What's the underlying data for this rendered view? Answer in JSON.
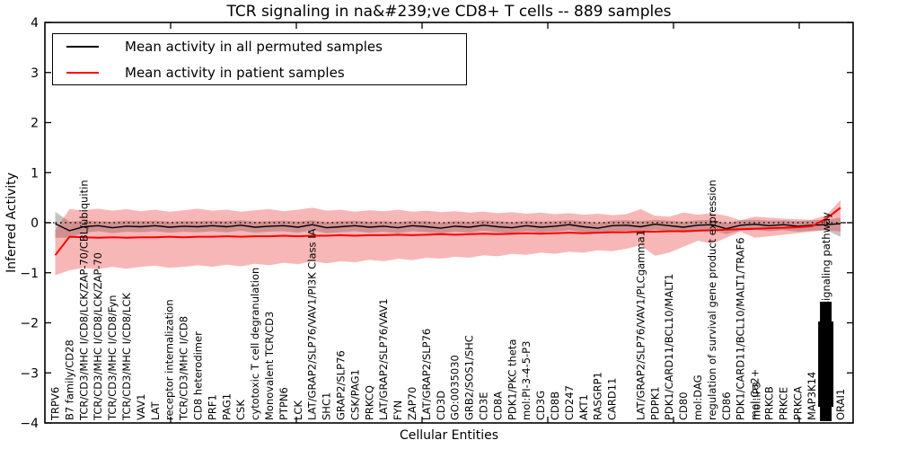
{
  "chart_data": {
    "type": "line",
    "title": "TCR signaling in na&#239;ve CD8+ T cells -- 889 samples",
    "xlabel": "Cellular Entities",
    "ylabel": "Inferred Activity",
    "ylim": [
      -4,
      4
    ],
    "yticks": [
      4,
      3,
      2,
      1,
      0,
      -1,
      -2,
      -3,
      -4
    ],
    "grid": false,
    "legend_position": "upper left",
    "zero_line": {
      "value": 0,
      "style": "dash-dot / dotted",
      "color": "#000000"
    },
    "categories": [
      "TRPV6",
      "B7 family/CD28",
      "TCR/CD3/MHC I/CD8/LCK/ZAP-70/CBL/ubiquitin",
      "TCR/CD3/MHC I/CD8/LCK/ZAP-70",
      "TCR/CD3/MHC I/CD8/Fyn",
      "TCR/CD3/MHC I/CD8/LCK",
      "VAV1",
      "LAT",
      "receptor internalization",
      "TCR/CD3/MHC I/CD8",
      "CD8 heterodimer",
      "PRF1",
      "PAG1",
      "CSK",
      "cytotoxic T cell degranulation",
      "Monovalent TCR/CD3",
      "PTPN6",
      "LCK",
      "LAT/GRAP2/SLP76/VAV1/PI3K Class IA",
      "SHC1",
      "GRAP2/SLP76",
      "CSK/PAG1",
      "PRKCQ",
      "LAT/GRAP2/SLP76/VAV1",
      "FYN",
      "ZAP70",
      "LAT/GRAP2/SLP76",
      "CD3D",
      "GO:0035030",
      "GRB2/SOS1/SHC",
      "CD3E",
      "CD8A",
      "PDK1/PKC theta",
      "mol:PI-3-4-5-P3",
      "CD3G",
      "CD8B",
      "CD247",
      "AKT1",
      "RASGRP1",
      "CARD11",
      "",
      "LAT/GRAP2/SLP76/VAV1/PLCgamma1",
      "PDPK1",
      "PDK1/CARD11/BCL10/MALT1",
      "CD80",
      "mol:DAG",
      "regulation of survival gene product expression",
      "CD86",
      "PDK1/CARD11/BCL10/MALT1/TRAF6",
      "mol:Ca2+",
      "PRKCB",
      "PRKCE",
      "PRKCA",
      "MAP3K14",
      "",
      "ORAI1"
    ],
    "overlapped_extra_label": {
      "index": 49,
      "label": "mol:IP3"
    },
    "unreadable_label_cluster": {
      "index": 54,
      "legible_fragment": "signaling pathway"
    },
    "series": [
      {
        "name": "Mean activity in all permuted samples",
        "color": "#000000",
        "values": [
          -0.02,
          -0.16,
          -0.08,
          -0.06,
          -0.1,
          -0.07,
          -0.08,
          -0.06,
          -0.09,
          -0.07,
          -0.08,
          -0.06,
          -0.08,
          -0.05,
          -0.09,
          -0.07,
          -0.06,
          -0.09,
          -0.04,
          -0.1,
          -0.08,
          -0.06,
          -0.09,
          -0.07,
          -0.1,
          -0.06,
          -0.08,
          -0.11,
          -0.07,
          -0.09,
          -0.05,
          -0.08,
          -0.1,
          -0.06,
          -0.09,
          -0.07,
          -0.04,
          -0.08,
          -0.11,
          -0.06,
          -0.05,
          -0.08,
          -0.03,
          -0.06,
          -0.09,
          -0.05,
          -0.04,
          -0.12,
          -0.05,
          -0.03,
          -0.06,
          -0.04,
          -0.07,
          -0.05,
          -0.04,
          -0.02
        ],
        "band_top": [
          0.22,
          0.02,
          0.04,
          0.03,
          0.02,
          0.04,
          0.03,
          0.04,
          0.02,
          0.03,
          0.03,
          0.04,
          0.03,
          0.05,
          0.02,
          0.03,
          0.04,
          0.02,
          0.05,
          0.01,
          0.03,
          0.04,
          0.02,
          0.03,
          0.01,
          0.04,
          0.03,
          0.0,
          0.03,
          0.02,
          0.05,
          0.03,
          0.01,
          0.04,
          0.02,
          0.03,
          0.05,
          0.03,
          0.0,
          0.04,
          0.05,
          0.03,
          0.06,
          0.04,
          0.02,
          0.05,
          0.06,
          -0.01,
          0.05,
          0.06,
          0.04,
          0.05,
          0.03,
          0.05,
          0.06,
          0.1
        ],
        "band_bottom": [
          -0.3,
          -0.3,
          -0.2,
          -0.17,
          -0.21,
          -0.18,
          -0.19,
          -0.17,
          -0.2,
          -0.18,
          -0.19,
          -0.17,
          -0.19,
          -0.16,
          -0.2,
          -0.18,
          -0.17,
          -0.2,
          -0.15,
          -0.21,
          -0.19,
          -0.17,
          -0.2,
          -0.18,
          -0.21,
          -0.17,
          -0.19,
          -0.22,
          -0.18,
          -0.2,
          -0.16,
          -0.19,
          -0.21,
          -0.17,
          -0.2,
          -0.18,
          -0.15,
          -0.19,
          -0.22,
          -0.17,
          -0.16,
          -0.19,
          -0.14,
          -0.17,
          -0.2,
          -0.16,
          -0.15,
          -0.23,
          -0.16,
          -0.14,
          -0.17,
          -0.15,
          -0.18,
          -0.16,
          -0.15,
          -0.28
        ],
        "band_color": "rgba(125,125,125,0.45)"
      },
      {
        "name": "Mean activity in patient samples",
        "color": "#ff0000",
        "values": [
          -0.65,
          -0.28,
          -0.29,
          -0.3,
          -0.29,
          -0.3,
          -0.29,
          -0.29,
          -0.28,
          -0.29,
          -0.28,
          -0.28,
          -0.27,
          -0.28,
          -0.27,
          -0.27,
          -0.26,
          -0.27,
          -0.26,
          -0.26,
          -0.25,
          -0.26,
          -0.25,
          -0.25,
          -0.24,
          -0.25,
          -0.24,
          -0.23,
          -0.24,
          -0.23,
          -0.22,
          -0.23,
          -0.22,
          -0.21,
          -0.22,
          -0.21,
          -0.2,
          -0.21,
          -0.2,
          -0.19,
          -0.19,
          -0.18,
          -0.18,
          -0.17,
          -0.17,
          -0.16,
          -0.15,
          -0.14,
          -0.13,
          -0.12,
          -0.11,
          -0.1,
          -0.09,
          -0.07,
          0.08,
          0.3
        ],
        "band_top": [
          -0.15,
          0.27,
          0.25,
          0.28,
          0.24,
          0.27,
          0.23,
          0.26,
          0.22,
          0.25,
          0.28,
          0.24,
          0.26,
          0.22,
          0.25,
          0.27,
          0.23,
          0.26,
          0.3,
          0.24,
          0.26,
          0.22,
          0.25,
          0.23,
          0.26,
          0.22,
          0.24,
          0.21,
          0.23,
          0.2,
          0.22,
          0.19,
          0.21,
          0.18,
          0.2,
          0.17,
          0.19,
          0.16,
          0.18,
          0.15,
          0.17,
          0.27,
          0.14,
          0.12,
          0.2,
          0.16,
          0.19,
          0.14,
          0.05,
          0.12,
          0.1,
          0.08,
          0.07,
          0.06,
          0.15,
          0.45
        ],
        "band_bottom": [
          -1.05,
          -0.95,
          -0.9,
          -0.93,
          -0.88,
          -0.92,
          -0.88,
          -0.86,
          -0.9,
          -0.88,
          -0.85,
          -0.88,
          -0.84,
          -0.87,
          -0.82,
          -0.85,
          -0.8,
          -0.83,
          -0.77,
          -0.81,
          -0.77,
          -0.79,
          -0.74,
          -0.77,
          -0.72,
          -0.75,
          -0.7,
          -0.72,
          -0.68,
          -0.7,
          -0.65,
          -0.67,
          -0.62,
          -0.64,
          -0.6,
          -0.62,
          -0.58,
          -0.6,
          -0.55,
          -0.57,
          -0.52,
          -0.45,
          -0.66,
          -0.6,
          -0.48,
          -0.36,
          -0.42,
          -0.3,
          -0.18,
          -0.3,
          -0.27,
          -0.24,
          -0.21,
          -0.18,
          -0.15,
          -0.18
        ],
        "band_color": "rgba(235,45,45,0.34)"
      }
    ]
  },
  "legend": {
    "items": [
      {
        "label": "Mean activity in all permuted samples",
        "color": "#000000"
      },
      {
        "label": "Mean activity in patient samples",
        "color": "#ff0000"
      }
    ]
  }
}
